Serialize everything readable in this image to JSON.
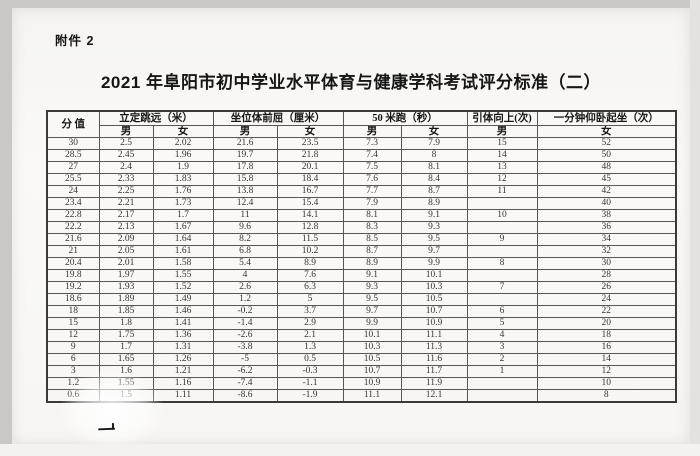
{
  "page": {
    "attachment_label": "附件 2",
    "title": "2021 年阜阳市初中学业水平体育与健康学科考试评分标准（二）"
  },
  "table": {
    "score_header": "分 值",
    "groups": [
      {
        "label": "立定跳远（米）",
        "sub": [
          "男",
          "女"
        ]
      },
      {
        "label": "坐位体前屈（厘米）",
        "sub": [
          "男",
          "女"
        ]
      },
      {
        "label": "50 米跑（秒）",
        "sub": [
          "男",
          "女"
        ]
      },
      {
        "label": "引体向上(次)",
        "sub": [
          "男"
        ]
      },
      {
        "label": "一分钟仰卧起坐（次）",
        "sub": [
          "女"
        ]
      }
    ],
    "rows": [
      [
        "30",
        "2.5",
        "2.02",
        "21.6",
        "23.5",
        "7.3",
        "7.9",
        "15",
        "52"
      ],
      [
        "28.5",
        "2.45",
        "1.96",
        "19.7",
        "21.8",
        "7.4",
        "8",
        "14",
        "50"
      ],
      [
        "27",
        "2.4",
        "1.9",
        "17.8",
        "20.1",
        "7.5",
        "8.1",
        "13",
        "48"
      ],
      [
        "25.5",
        "2.33",
        "1.83",
        "15.8",
        "18.4",
        "7.6",
        "8.4",
        "12",
        "45"
      ],
      [
        "24",
        "2.25",
        "1.76",
        "13.8",
        "16.7",
        "7.7",
        "8.7",
        "11",
        "42"
      ],
      [
        "23.4",
        "2.21",
        "1.73",
        "12.4",
        "15.4",
        "7.9",
        "8.9",
        "",
        "40"
      ],
      [
        "22.8",
        "2.17",
        "1.7",
        "11",
        "14.1",
        "8.1",
        "9.1",
        "10",
        "38"
      ],
      [
        "22.2",
        "2.13",
        "1.67",
        "9.6",
        "12.8",
        "8.3",
        "9.3",
        "",
        "36"
      ],
      [
        "21.6",
        "2.09",
        "1.64",
        "8.2",
        "11.5",
        "8.5",
        "9.5",
        "9",
        "34"
      ],
      [
        "21",
        "2.05",
        "1.61",
        "6.8",
        "10.2",
        "8.7",
        "9.7",
        "",
        "32"
      ],
      [
        "20.4",
        "2.01",
        "1.58",
        "5.4",
        "8.9",
        "8.9",
        "9.9",
        "8",
        "30"
      ],
      [
        "19.8",
        "1.97",
        "1.55",
        "4",
        "7.6",
        "9.1",
        "10.1",
        "",
        "28"
      ],
      [
        "19.2",
        "1.93",
        "1.52",
        "2.6",
        "6.3",
        "9.3",
        "10.3",
        "7",
        "26"
      ],
      [
        "18.6",
        "1.89",
        "1.49",
        "1.2",
        "5",
        "9.5",
        "10.5",
        "",
        "24"
      ],
      [
        "18",
        "1.85",
        "1.46",
        "-0.2",
        "3.7",
        "9.7",
        "10.7",
        "6",
        "22"
      ],
      [
        "15",
        "1.8",
        "1.41",
        "-1.4",
        "2.9",
        "9.9",
        "10.9",
        "5",
        "20"
      ],
      [
        "12",
        "1.75",
        "1.36",
        "-2.6",
        "2.1",
        "10.1",
        "11.1",
        "4",
        "18"
      ],
      [
        "9",
        "1.7",
        "1.31",
        "-3.8",
        "1.3",
        "10.3",
        "11.3",
        "3",
        "16"
      ],
      [
        "6",
        "1.65",
        "1.26",
        "-5",
        "0.5",
        "10.5",
        "11.6",
        "2",
        "14"
      ],
      [
        "3",
        "1.6",
        "1.21",
        "-6.2",
        "-0.3",
        "10.7",
        "11.7",
        "1",
        "12"
      ],
      [
        "1.2",
        "1.55",
        "1.16",
        "-7.4",
        "-1.1",
        "10.9",
        "11.9",
        "",
        "10"
      ],
      [
        "0.6",
        "1.5",
        "1.11",
        "-8.6",
        "-1.9",
        "11.1",
        "12.1",
        "",
        "8"
      ]
    ]
  },
  "icons": {
    "footer_mark": "dash-mark"
  },
  "colors": {
    "frame_bg": "#c9c8c6",
    "page_bg": "#f8f7f5",
    "border": "#565656",
    "text": "#363636"
  }
}
